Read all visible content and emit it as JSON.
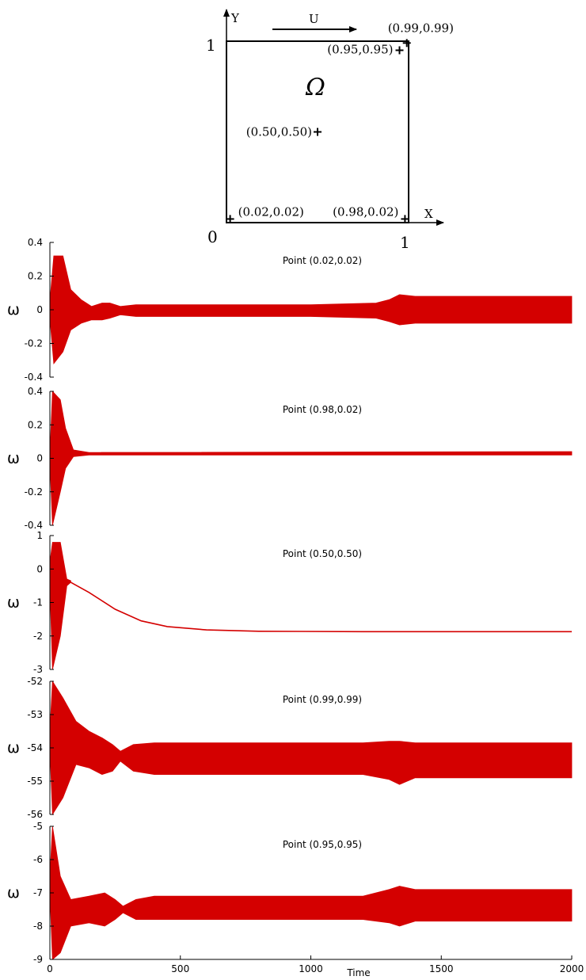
{
  "diagram": {
    "axis_y_label": "Y",
    "axis_x_label": "X",
    "lid_label": "U",
    "domain_label": "Ω",
    "origin_label": "0",
    "y_one_label": "1",
    "x_one_label": "1",
    "points": [
      {
        "label": "(0.99,0.99)",
        "x": 0.99,
        "y": 0.99
      },
      {
        "label": "(0.95,0.95)",
        "x": 0.95,
        "y": 0.95
      },
      {
        "label": "(0.50,0.50)",
        "x": 0.5,
        "y": 0.5
      },
      {
        "label": "(0.02,0.02)",
        "x": 0.02,
        "y": 0.02
      },
      {
        "label": "(0.98,0.02)",
        "x": 0.98,
        "y": 0.02
      }
    ]
  },
  "colors": {
    "series": "#d40000",
    "axes": "#000000"
  },
  "chart_data": [
    {
      "type": "line",
      "title": "Point (0.02,0.02)",
      "ylabel": "ω",
      "xlabel": "",
      "xlim": [
        0,
        2000
      ],
      "ylim": [
        -0.4,
        0.4
      ],
      "yticks": [
        "0.4",
        "0.2",
        "0",
        "-0.2",
        "-0.4"
      ],
      "xticks": [],
      "envelope": [
        {
          "t": 0,
          "lo": -0.05,
          "hi": 0.05
        },
        {
          "t": 15,
          "lo": -0.32,
          "hi": 0.32
        },
        {
          "t": 50,
          "lo": -0.25,
          "hi": 0.32
        },
        {
          "t": 80,
          "lo": -0.12,
          "hi": 0.12
        },
        {
          "t": 120,
          "lo": -0.08,
          "hi": 0.06
        },
        {
          "t": 160,
          "lo": -0.06,
          "hi": 0.02
        },
        {
          "t": 200,
          "lo": -0.06,
          "hi": 0.04
        },
        {
          "t": 230,
          "lo": -0.05,
          "hi": 0.04
        },
        {
          "t": 270,
          "lo": -0.03,
          "hi": 0.02
        },
        {
          "t": 330,
          "lo": -0.04,
          "hi": 0.03
        },
        {
          "t": 400,
          "lo": -0.04,
          "hi": 0.03
        },
        {
          "t": 1000,
          "lo": -0.04,
          "hi": 0.03
        },
        {
          "t": 1250,
          "lo": -0.05,
          "hi": 0.04
        },
        {
          "t": 1300,
          "lo": -0.07,
          "hi": 0.06
        },
        {
          "t": 1340,
          "lo": -0.09,
          "hi": 0.09
        },
        {
          "t": 1400,
          "lo": -0.08,
          "hi": 0.08
        },
        {
          "t": 2000,
          "lo": -0.08,
          "hi": 0.08
        }
      ]
    },
    {
      "type": "line",
      "title": "Point (0.98,0.02)",
      "ylabel": "ω",
      "xlabel": "",
      "xlim": [
        0,
        2000
      ],
      "ylim": [
        -0.4,
        0.4
      ],
      "yticks": [
        "0.4",
        "0.2",
        "0",
        "-0.2",
        "-0.4"
      ],
      "xticks": [],
      "envelope": [
        {
          "t": 0,
          "lo": -0.02,
          "hi": 0.02
        },
        {
          "t": 10,
          "lo": -0.4,
          "hi": 0.4
        },
        {
          "t": 40,
          "lo": -0.2,
          "hi": 0.35
        },
        {
          "t": 60,
          "lo": -0.06,
          "hi": 0.18
        },
        {
          "t": 90,
          "lo": 0.01,
          "hi": 0.05
        },
        {
          "t": 150,
          "lo": 0.02,
          "hi": 0.035
        },
        {
          "t": 2000,
          "lo": 0.02,
          "hi": 0.04
        }
      ]
    },
    {
      "type": "line",
      "title": "Point (0.50,0.50)",
      "ylabel": "ω",
      "xlabel": "",
      "xlim": [
        0,
        2000
      ],
      "ylim": [
        -3,
        1
      ],
      "yticks": [
        "1",
        "0",
        "-1",
        "-2",
        "-3"
      ],
      "xticks": [],
      "envelope": [
        {
          "t": 0,
          "lo": -0.5,
          "hi": 0.2
        },
        {
          "t": 10,
          "lo": -3.0,
          "hi": 0.8
        },
        {
          "t": 40,
          "lo": -2.0,
          "hi": 0.8
        },
        {
          "t": 65,
          "lo": -0.5,
          "hi": -0.3
        },
        {
          "t": 80,
          "lo": -0.4,
          "hi": -0.35
        }
      ],
      "curve": [
        {
          "t": 80,
          "v": -0.4
        },
        {
          "t": 150,
          "v": -0.7
        },
        {
          "t": 250,
          "v": -1.2
        },
        {
          "t": 350,
          "v": -1.55
        },
        {
          "t": 450,
          "v": -1.72
        },
        {
          "t": 600,
          "v": -1.82
        },
        {
          "t": 800,
          "v": -1.86
        },
        {
          "t": 1200,
          "v": -1.87
        },
        {
          "t": 2000,
          "v": -1.87
        }
      ]
    },
    {
      "type": "line",
      "title": "Point (0.99,0.99)",
      "ylabel": "ω",
      "xlabel": "",
      "xlim": [
        0,
        2000
      ],
      "ylim": [
        -56,
        -52
      ],
      "yticks": [
        "-52",
        "-53",
        "-54",
        "-55",
        "-56"
      ],
      "xticks": [],
      "envelope": [
        {
          "t": 0,
          "lo": -54.0,
          "hi": -53.5
        },
        {
          "t": 10,
          "lo": -56.0,
          "hi": -52.0
        },
        {
          "t": 50,
          "lo": -55.5,
          "hi": -52.5
        },
        {
          "t": 100,
          "lo": -54.5,
          "hi": -53.2
        },
        {
          "t": 150,
          "lo": -54.6,
          "hi": -53.5
        },
        {
          "t": 200,
          "lo": -54.8,
          "hi": -53.7
        },
        {
          "t": 240,
          "lo": -54.7,
          "hi": -53.9
        },
        {
          "t": 270,
          "lo": -54.4,
          "hi": -54.1
        },
        {
          "t": 320,
          "lo": -54.7,
          "hi": -53.9
        },
        {
          "t": 400,
          "lo": -54.8,
          "hi": -53.85
        },
        {
          "t": 1200,
          "lo": -54.8,
          "hi": -53.85
        },
        {
          "t": 1300,
          "lo": -54.95,
          "hi": -53.8
        },
        {
          "t": 1340,
          "lo": -55.1,
          "hi": -53.8
        },
        {
          "t": 1400,
          "lo": -54.9,
          "hi": -53.85
        },
        {
          "t": 2000,
          "lo": -54.9,
          "hi": -53.85
        }
      ]
    },
    {
      "type": "line",
      "title": "Point (0.95,0.95)",
      "ylabel": "ω",
      "xlabel": "Time",
      "xlim": [
        0,
        2000
      ],
      "ylim": [
        -9,
        -5
      ],
      "yticks": [
        "-5",
        "-6",
        "-7",
        "-8",
        "-9"
      ],
      "xticks": [
        "0",
        "500",
        "1000",
        "1500",
        "2000"
      ],
      "envelope": [
        {
          "t": 0,
          "lo": -7.0,
          "hi": -6.5
        },
        {
          "t": 10,
          "lo": -9.0,
          "hi": -5.0
        },
        {
          "t": 40,
          "lo": -8.8,
          "hi": -6.5
        },
        {
          "t": 80,
          "lo": -8.0,
          "hi": -7.2
        },
        {
          "t": 150,
          "lo": -7.9,
          "hi": -7.1
        },
        {
          "t": 210,
          "lo": -8.0,
          "hi": -7.0
        },
        {
          "t": 250,
          "lo": -7.8,
          "hi": -7.2
        },
        {
          "t": 280,
          "lo": -7.6,
          "hi": -7.4
        },
        {
          "t": 330,
          "lo": -7.8,
          "hi": -7.2
        },
        {
          "t": 400,
          "lo": -7.8,
          "hi": -7.1
        },
        {
          "t": 1200,
          "lo": -7.8,
          "hi": -7.1
        },
        {
          "t": 1300,
          "lo": -7.9,
          "hi": -6.9
        },
        {
          "t": 1340,
          "lo": -8.0,
          "hi": -6.8
        },
        {
          "t": 1400,
          "lo": -7.85,
          "hi": -6.9
        },
        {
          "t": 2000,
          "lo": -7.85,
          "hi": -6.9
        }
      ]
    }
  ]
}
